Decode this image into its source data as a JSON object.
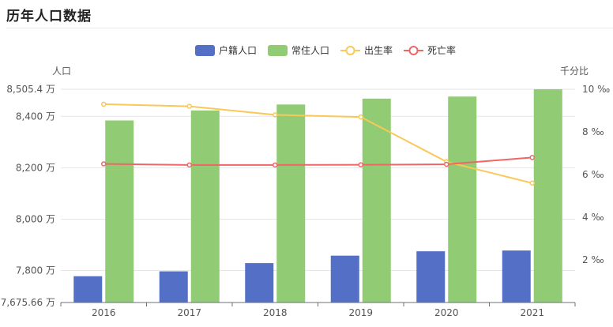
{
  "page": {
    "title": "历年人口数据"
  },
  "colors": {
    "households": "#5470c6",
    "resident": "#91cc75",
    "birth_rate": "#fac858",
    "death_rate": "#ee6666"
  },
  "chart_data": {
    "type": "bar+line",
    "categories": [
      "2016",
      "2017",
      "2018",
      "2019",
      "2020",
      "2021"
    ],
    "left_axis": {
      "name": "人口",
      "min": 7675.66,
      "max": 8505.4,
      "ticks": [
        7675.66,
        7800,
        8000,
        8200,
        8400,
        8505.4
      ],
      "tick_labels": [
        "7,675.66 万",
        "7,800 万",
        "8,000 万",
        "8,200 万",
        "8,400 万",
        "8,505.4 万"
      ]
    },
    "right_axis": {
      "name": "千分比",
      "min": 0,
      "max": 10,
      "ticks": [
        2,
        4,
        6,
        8,
        10
      ],
      "tick_labels": [
        "2 ‰",
        "4 ‰",
        "6 ‰",
        "8 ‰",
        "10 ‰"
      ]
    },
    "series": [
      {
        "name": "户籍人口",
        "type": "bar",
        "axis": "left",
        "values": [
          7778,
          7797,
          7829,
          7858,
          7875,
          7878
        ]
      },
      {
        "name": "常住人口",
        "type": "bar",
        "axis": "left",
        "values": [
          8384,
          8423,
          8446,
          8469,
          8477,
          8505.4
        ]
      },
      {
        "name": "出生率",
        "type": "line",
        "axis": "right",
        "values": [
          9.3,
          9.2,
          8.8,
          8.7,
          6.6,
          5.6
        ]
      },
      {
        "name": "死亡率",
        "type": "line",
        "axis": "right",
        "values": [
          6.5,
          6.45,
          6.45,
          6.46,
          6.48,
          6.8
        ]
      }
    ],
    "legend": [
      "户籍人口",
      "常住人口",
      "出生率",
      "死亡率"
    ],
    "legend_position": "top-center",
    "grid": true
  }
}
